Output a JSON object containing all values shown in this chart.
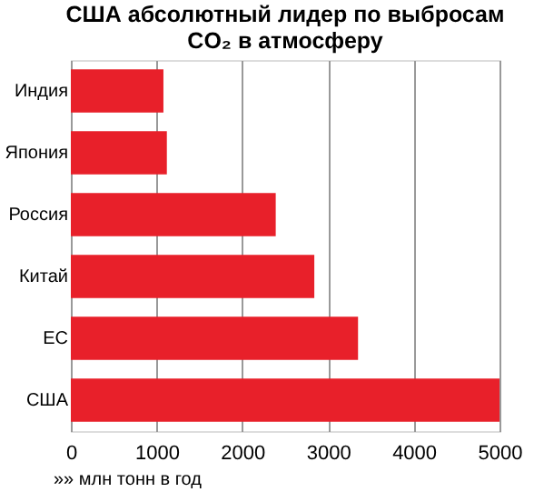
{
  "chart_data": {
    "type": "bar",
    "orientation": "horizontal",
    "title": "США абсолютный лидер по выбросам CO₂ в атмосферу",
    "xlabel": "»» млн тонн в год",
    "categories": [
      "Индия",
      "Япония",
      "Россия",
      "Китай",
      "ЕС",
      "США"
    ],
    "values": [
      1080,
      1120,
      2390,
      2840,
      3350,
      5000
    ],
    "color": "#e8202a",
    "xlim": [
      0,
      5000
    ],
    "xticks": [
      0,
      1000,
      2000,
      3000,
      4000,
      5000
    ],
    "grid": "x"
  }
}
